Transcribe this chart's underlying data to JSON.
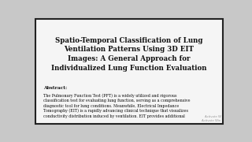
{
  "bg_color": "#c8c8c8",
  "paper_color": "#f5f5f5",
  "border_color": "#222222",
  "title": "Spatio-Temporal Classification of Lung\nVentilation Patterns Using 3D EIT\nImages: A General Approach for\nIndividualized Lung Function Evaluation",
  "title_fontsize": 6.2,
  "title_bold": true,
  "title_color": "#111111",
  "abstract_label": "Abstract:",
  "abstract_label_fontsize": 4.2,
  "abstract_text": "The Pulmonary Function Test (PFT) is a widely utilized and rigorous\nclassification test for evaluating lung function, serving as a comprehensive\ndiagnostic tool for lung conditions. Meanwhile, Electrical Impedance\nTomography (EIT) is a rapidly advancing clinical technique that visualizes\nconductivity distribution induced by ventilation. EIT provides additional",
  "abstract_fontsize": 3.5,
  "watermark": "Activate W\nActivate Win",
  "watermark_fontsize": 2.8,
  "watermark_color": "#999999"
}
